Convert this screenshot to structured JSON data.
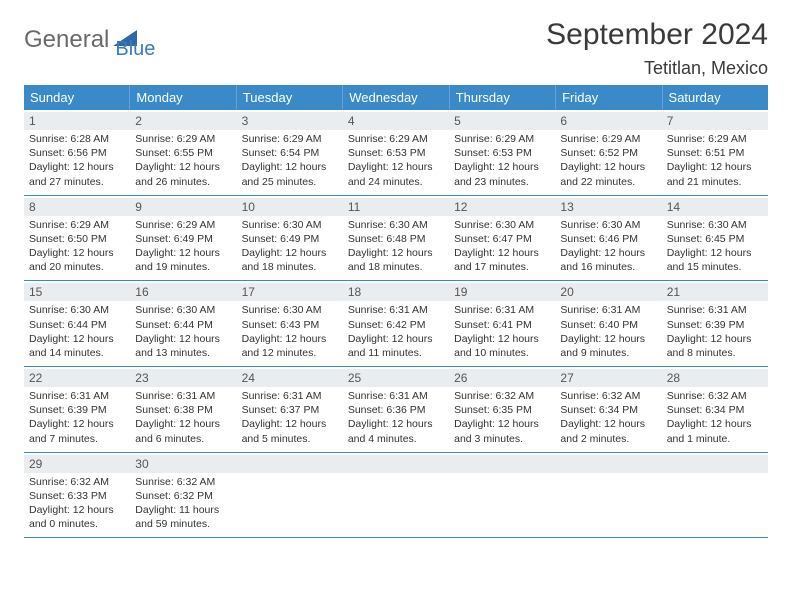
{
  "logo": {
    "part1": "General",
    "part2": "Blue",
    "color1": "#6a6a6a",
    "color2": "#3a7bbf"
  },
  "title": "September 2024",
  "location": "Tetitlan, Mexico",
  "header_bg": "#3a89c9",
  "header_text_color": "#ffffff",
  "daynum_bg": "#e9edf0",
  "border_color": "#3a89c9",
  "day_names": [
    "Sunday",
    "Monday",
    "Tuesday",
    "Wednesday",
    "Thursday",
    "Friday",
    "Saturday"
  ],
  "weeks": [
    [
      {
        "n": "1",
        "sr": "Sunrise: 6:28 AM",
        "ss": "Sunset: 6:56 PM",
        "d1": "Daylight: 12 hours",
        "d2": "and 27 minutes."
      },
      {
        "n": "2",
        "sr": "Sunrise: 6:29 AM",
        "ss": "Sunset: 6:55 PM",
        "d1": "Daylight: 12 hours",
        "d2": "and 26 minutes."
      },
      {
        "n": "3",
        "sr": "Sunrise: 6:29 AM",
        "ss": "Sunset: 6:54 PM",
        "d1": "Daylight: 12 hours",
        "d2": "and 25 minutes."
      },
      {
        "n": "4",
        "sr": "Sunrise: 6:29 AM",
        "ss": "Sunset: 6:53 PM",
        "d1": "Daylight: 12 hours",
        "d2": "and 24 minutes."
      },
      {
        "n": "5",
        "sr": "Sunrise: 6:29 AM",
        "ss": "Sunset: 6:53 PM",
        "d1": "Daylight: 12 hours",
        "d2": "and 23 minutes."
      },
      {
        "n": "6",
        "sr": "Sunrise: 6:29 AM",
        "ss": "Sunset: 6:52 PM",
        "d1": "Daylight: 12 hours",
        "d2": "and 22 minutes."
      },
      {
        "n": "7",
        "sr": "Sunrise: 6:29 AM",
        "ss": "Sunset: 6:51 PM",
        "d1": "Daylight: 12 hours",
        "d2": "and 21 minutes."
      }
    ],
    [
      {
        "n": "8",
        "sr": "Sunrise: 6:29 AM",
        "ss": "Sunset: 6:50 PM",
        "d1": "Daylight: 12 hours",
        "d2": "and 20 minutes."
      },
      {
        "n": "9",
        "sr": "Sunrise: 6:29 AM",
        "ss": "Sunset: 6:49 PM",
        "d1": "Daylight: 12 hours",
        "d2": "and 19 minutes."
      },
      {
        "n": "10",
        "sr": "Sunrise: 6:30 AM",
        "ss": "Sunset: 6:49 PM",
        "d1": "Daylight: 12 hours",
        "d2": "and 18 minutes."
      },
      {
        "n": "11",
        "sr": "Sunrise: 6:30 AM",
        "ss": "Sunset: 6:48 PM",
        "d1": "Daylight: 12 hours",
        "d2": "and 18 minutes."
      },
      {
        "n": "12",
        "sr": "Sunrise: 6:30 AM",
        "ss": "Sunset: 6:47 PM",
        "d1": "Daylight: 12 hours",
        "d2": "and 17 minutes."
      },
      {
        "n": "13",
        "sr": "Sunrise: 6:30 AM",
        "ss": "Sunset: 6:46 PM",
        "d1": "Daylight: 12 hours",
        "d2": "and 16 minutes."
      },
      {
        "n": "14",
        "sr": "Sunrise: 6:30 AM",
        "ss": "Sunset: 6:45 PM",
        "d1": "Daylight: 12 hours",
        "d2": "and 15 minutes."
      }
    ],
    [
      {
        "n": "15",
        "sr": "Sunrise: 6:30 AM",
        "ss": "Sunset: 6:44 PM",
        "d1": "Daylight: 12 hours",
        "d2": "and 14 minutes."
      },
      {
        "n": "16",
        "sr": "Sunrise: 6:30 AM",
        "ss": "Sunset: 6:44 PM",
        "d1": "Daylight: 12 hours",
        "d2": "and 13 minutes."
      },
      {
        "n": "17",
        "sr": "Sunrise: 6:30 AM",
        "ss": "Sunset: 6:43 PM",
        "d1": "Daylight: 12 hours",
        "d2": "and 12 minutes."
      },
      {
        "n": "18",
        "sr": "Sunrise: 6:31 AM",
        "ss": "Sunset: 6:42 PM",
        "d1": "Daylight: 12 hours",
        "d2": "and 11 minutes."
      },
      {
        "n": "19",
        "sr": "Sunrise: 6:31 AM",
        "ss": "Sunset: 6:41 PM",
        "d1": "Daylight: 12 hours",
        "d2": "and 10 minutes."
      },
      {
        "n": "20",
        "sr": "Sunrise: 6:31 AM",
        "ss": "Sunset: 6:40 PM",
        "d1": "Daylight: 12 hours",
        "d2": "and 9 minutes."
      },
      {
        "n": "21",
        "sr": "Sunrise: 6:31 AM",
        "ss": "Sunset: 6:39 PM",
        "d1": "Daylight: 12 hours",
        "d2": "and 8 minutes."
      }
    ],
    [
      {
        "n": "22",
        "sr": "Sunrise: 6:31 AM",
        "ss": "Sunset: 6:39 PM",
        "d1": "Daylight: 12 hours",
        "d2": "and 7 minutes."
      },
      {
        "n": "23",
        "sr": "Sunrise: 6:31 AM",
        "ss": "Sunset: 6:38 PM",
        "d1": "Daylight: 12 hours",
        "d2": "and 6 minutes."
      },
      {
        "n": "24",
        "sr": "Sunrise: 6:31 AM",
        "ss": "Sunset: 6:37 PM",
        "d1": "Daylight: 12 hours",
        "d2": "and 5 minutes."
      },
      {
        "n": "25",
        "sr": "Sunrise: 6:31 AM",
        "ss": "Sunset: 6:36 PM",
        "d1": "Daylight: 12 hours",
        "d2": "and 4 minutes."
      },
      {
        "n": "26",
        "sr": "Sunrise: 6:32 AM",
        "ss": "Sunset: 6:35 PM",
        "d1": "Daylight: 12 hours",
        "d2": "and 3 minutes."
      },
      {
        "n": "27",
        "sr": "Sunrise: 6:32 AM",
        "ss": "Sunset: 6:34 PM",
        "d1": "Daylight: 12 hours",
        "d2": "and 2 minutes."
      },
      {
        "n": "28",
        "sr": "Sunrise: 6:32 AM",
        "ss": "Sunset: 6:34 PM",
        "d1": "Daylight: 12 hours",
        "d2": "and 1 minute."
      }
    ],
    [
      {
        "n": "29",
        "sr": "Sunrise: 6:32 AM",
        "ss": "Sunset: 6:33 PM",
        "d1": "Daylight: 12 hours",
        "d2": "and 0 minutes."
      },
      {
        "n": "30",
        "sr": "Sunrise: 6:32 AM",
        "ss": "Sunset: 6:32 PM",
        "d1": "Daylight: 11 hours",
        "d2": "and 59 minutes."
      },
      {
        "empty": true
      },
      {
        "empty": true
      },
      {
        "empty": true
      },
      {
        "empty": true
      },
      {
        "empty": true
      }
    ]
  ]
}
